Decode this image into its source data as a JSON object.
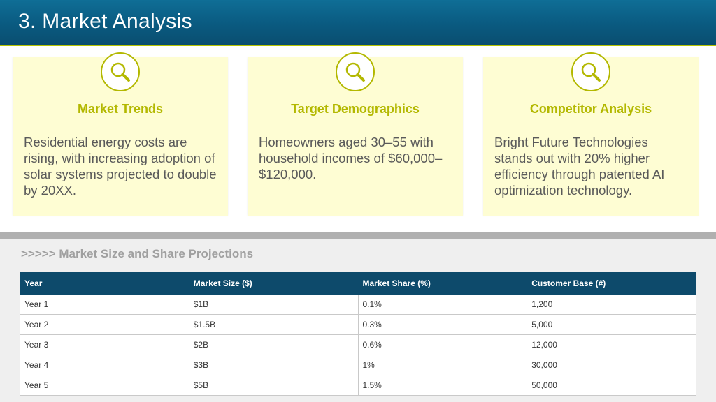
{
  "header": {
    "title": "3. Market Analysis"
  },
  "colors": {
    "header_bg": "#0a5a80",
    "accent": "#b3b800",
    "card_bg": "#fefdd3",
    "table_header": "#0d4a6b"
  },
  "cards": [
    {
      "icon": "magnifier-icon",
      "title": "Market Trends",
      "text": "Residential energy costs are rising, with increasing adoption of solar systems projected to double by 20XX."
    },
    {
      "icon": "magnifier-icon",
      "title": "Target Demographics",
      "text": "Homeowners aged 30–55 with household incomes of $60,000–$120,000."
    },
    {
      "icon": "magnifier-icon",
      "title": "Competitor Analysis",
      "text": "Bright Future Technologies stands out with 20% higher efficiency through patented AI optimization technology."
    }
  ],
  "section": {
    "title": ">>>>> Market Size and Share Projections"
  },
  "table": {
    "headers": [
      "Year",
      "Market Size ($)",
      "Market Share (%)",
      "Customer Base (#)"
    ],
    "rows": [
      [
        "Year 1",
        "$1B",
        "0.1%",
        "1,200"
      ],
      [
        "Year 2",
        "$1.5B",
        "0.3%",
        "5,000"
      ],
      [
        "Year 3",
        "$2B",
        "0.6%",
        "12,000"
      ],
      [
        "Year 4",
        "$3B",
        "1%",
        "30,000"
      ],
      [
        "Year 5",
        "$5B",
        "1.5%",
        "50,000"
      ]
    ]
  }
}
